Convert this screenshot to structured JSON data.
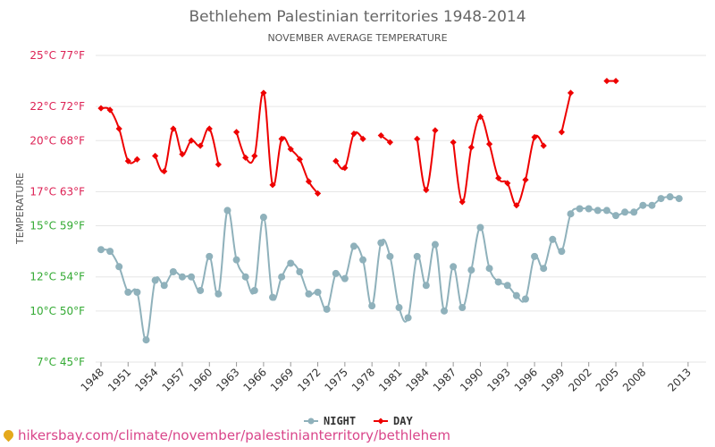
{
  "chart_data": {
    "type": "line",
    "title": "Bethlehem Palestinian territories 1948-2014",
    "subtitle": "NOVEMBER AVERAGE TEMPERATURE",
    "ylabel": "TEMPERATURE",
    "ylim": [
      7,
      25
    ],
    "y_ticks": [
      {
        "value": 7,
        "label": "7°C 45°F",
        "color": "#33aa33"
      },
      {
        "value": 10,
        "label": "10°C 50°F",
        "color": "#33aa33"
      },
      {
        "value": 12,
        "label": "12°C 54°F",
        "color": "#33aa33"
      },
      {
        "value": 15,
        "label": "15°C 59°F",
        "color": "#33aa33"
      },
      {
        "value": 17,
        "label": "17°C 63°F",
        "color": "#dd2255"
      },
      {
        "value": 20,
        "label": "20°C 68°F",
        "color": "#dd2255"
      },
      {
        "value": 22,
        "label": "22°C 72°F",
        "color": "#dd2255"
      },
      {
        "value": 25,
        "label": "25°C 77°F",
        "color": "#dd2255"
      }
    ],
    "x_ticks": [
      "1948",
      "1951",
      "1954",
      "1957",
      "1960",
      "1963",
      "1966",
      "1969",
      "1972",
      "1975",
      "1978",
      "1981",
      "1984",
      "1987",
      "1990",
      "1993",
      "1996",
      "1999",
      "2002",
      "2005",
      "2008",
      "2013"
    ],
    "x": [
      1948,
      1949,
      1950,
      1951,
      1952,
      1953,
      1954,
      1955,
      1956,
      1957,
      1958,
      1959,
      1960,
      1961,
      1962,
      1963,
      1964,
      1965,
      1966,
      1967,
      1968,
      1969,
      1970,
      1971,
      1972,
      1973,
      1974,
      1975,
      1976,
      1977,
      1978,
      1979,
      1980,
      1981,
      1982,
      1983,
      1984,
      1985,
      1986,
      1987,
      1988,
      1989,
      1990,
      1991,
      1992,
      1993,
      1994,
      1995,
      1996,
      1997,
      1998,
      1999,
      2000,
      2001,
      2002,
      2003,
      2004,
      2005,
      2006,
      2007,
      2008,
      2009,
      2010,
      2011,
      2012,
      2013,
      2014
    ],
    "series": [
      {
        "name": "NIGHT",
        "color": "#8fb1bb",
        "marker": "circle",
        "values": [
          13.6,
          13.5,
          12.6,
          11.1,
          11.1,
          8.3,
          11.8,
          11.5,
          12.3,
          12,
          12,
          11.2,
          13.2,
          11,
          15.9,
          13,
          12,
          11.2,
          15.5,
          10.8,
          12,
          12.8,
          12.3,
          11,
          11.1,
          10.1,
          12.2,
          11.9,
          13.8,
          13,
          10.3,
          14,
          13.2,
          10.2,
          9.6,
          13.2,
          11.5,
          13.9,
          10,
          12.6,
          10.2,
          12.4,
          14.9,
          12.5,
          11.7,
          11.5,
          10.9,
          10.7,
          13.2,
          12.5,
          14.2,
          13.5,
          15.7,
          16,
          16,
          15.9,
          15.9,
          15.6,
          15.8,
          15.8,
          16.2,
          16.2,
          16.6,
          16.7,
          16.6,
          null,
          null
        ]
      },
      {
        "name": "DAY",
        "color": "#ee0000",
        "marker": "diamond",
        "values": [
          21.9,
          21.8,
          20.7,
          18.8,
          18.9,
          null,
          19.1,
          18.2,
          20.7,
          19.2,
          20,
          19.7,
          20.7,
          18.6,
          null,
          20.5,
          19,
          19.1,
          22.8,
          17.4,
          20.1,
          19.5,
          18.9,
          17.6,
          16.9,
          null,
          18.8,
          18.4,
          20.4,
          20.1,
          null,
          20.3,
          19.9,
          null,
          null,
          20.1,
          17.1,
          20.6,
          null,
          19.9,
          16.4,
          19.6,
          21.4,
          19.8,
          17.8,
          17.5,
          16.2,
          17.7,
          20.2,
          19.7,
          null,
          20.5,
          22.8,
          null,
          null,
          null,
          23.5,
          23.5,
          null,
          null,
          null,
          null,
          null,
          null,
          null,
          null,
          null
        ]
      }
    ],
    "legend_position": "bottom-center",
    "grid": true
  },
  "footer": {
    "text": "hikersbay.com/climate/november/palestinianterritory/bethlehem",
    "color": "#d9458a"
  }
}
